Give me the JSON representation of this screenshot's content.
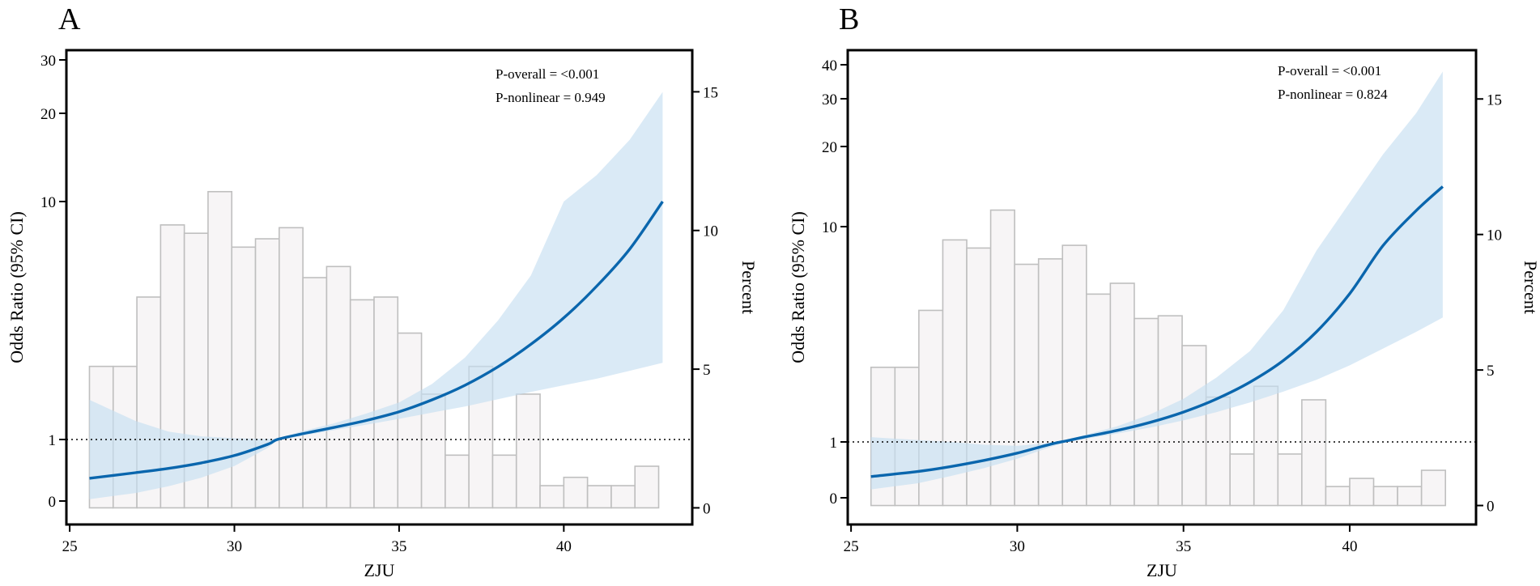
{
  "chart_data": [
    {
      "panel": "A",
      "type": "bar+line",
      "xlabel": "ZJU",
      "ylabel": "Odds Ratio (95% CI)",
      "y2label": "Percent",
      "xticks": [
        25,
        30,
        35,
        40
      ],
      "xlim": [
        24.9,
        43.9
      ],
      "yticks": [
        0,
        1,
        10,
        20,
        30
      ],
      "y2ticks": [
        0,
        5,
        10,
        15
      ],
      "y2lim": [
        -0.6,
        16.5
      ],
      "annotations": [
        "P-overall = <0.001",
        "P-nonlinear = 0.949"
      ],
      "reference_line": 1,
      "histogram": {
        "bin_width": 0.72,
        "bin_start": 25.6,
        "percent": [
          5.1,
          5.1,
          7.6,
          10.2,
          9.9,
          11.4,
          9.4,
          9.7,
          10.1,
          8.3,
          8.7,
          7.5,
          7.6,
          6.3,
          4.1,
          1.9,
          5.1,
          1.9,
          4.1,
          0.8,
          1.1,
          0.8,
          0.8,
          1.5
        ]
      },
      "spline": {
        "x": [
          25.6,
          27,
          28,
          29,
          30,
          31,
          31.3,
          32,
          33,
          34,
          35,
          36,
          37,
          38,
          39,
          40,
          41,
          42,
          43
        ],
        "or": [
          0.37,
          0.46,
          0.53,
          0.62,
          0.74,
          0.92,
          1.0,
          1.2,
          1.45,
          1.72,
          2.05,
          2.5,
          3.05,
          3.75,
          4.6,
          5.6,
          6.8,
          8.2,
          10.0
        ],
        "lower": [
          0.03,
          0.13,
          0.24,
          0.38,
          0.57,
          0.86,
          0.98,
          1.13,
          1.35,
          1.56,
          1.78,
          2.02,
          2.25,
          2.52,
          2.8,
          3.05,
          3.3,
          3.6,
          3.9
        ],
        "upper": [
          2.5,
          1.7,
          1.3,
          1.12,
          1.05,
          1.02,
          1.02,
          1.3,
          1.6,
          1.98,
          2.4,
          3.1,
          4.1,
          5.5,
          7.2,
          10.0,
          13.0,
          17.0,
          24.0
        ]
      }
    },
    {
      "panel": "B",
      "type": "bar+line",
      "xlabel": "ZJU",
      "ylabel": "Odds Ratio (95% CI)",
      "y2label": "Percent",
      "xticks": [
        25,
        30,
        35,
        40
      ],
      "xlim": [
        24.9,
        43.8
      ],
      "yticks": [
        0,
        1,
        10,
        20,
        30,
        40
      ],
      "y2ticks": [
        0,
        5,
        10,
        15
      ],
      "y2lim": [
        -0.7,
        16.8
      ],
      "annotations": [
        "P-overall = <0.001",
        "P-nonlinear = 0.824"
      ],
      "reference_line": 1,
      "histogram": {
        "bin_width": 0.72,
        "bin_start": 25.6,
        "percent": [
          5.1,
          5.1,
          7.2,
          9.8,
          9.5,
          10.9,
          8.9,
          9.1,
          9.6,
          7.8,
          8.2,
          6.9,
          7.0,
          5.9,
          4.0,
          1.9,
          4.4,
          1.9,
          3.9,
          0.7,
          1.0,
          0.7,
          0.7,
          1.3
        ]
      },
      "spline": {
        "x": [
          25.6,
          27,
          28,
          29,
          30,
          31,
          31.5,
          32,
          33,
          34,
          35,
          36,
          37,
          38,
          39,
          40,
          41,
          42,
          42.8
        ],
        "or": [
          0.38,
          0.47,
          0.56,
          0.67,
          0.8,
          0.96,
          1.05,
          1.2,
          1.48,
          1.82,
          2.25,
          2.8,
          3.5,
          4.4,
          5.6,
          7.2,
          9.2,
          12.0,
          15.0
        ],
        "lower": [
          0.15,
          0.26,
          0.39,
          0.53,
          0.7,
          0.91,
          1.0,
          1.12,
          1.35,
          1.6,
          1.9,
          2.25,
          2.65,
          3.1,
          3.6,
          4.2,
          4.9,
          5.6,
          6.2
        ],
        "upper": [
          1.2,
          1.08,
          1.0,
          0.95,
          0.93,
          0.98,
          1.08,
          1.28,
          1.65,
          2.15,
          2.8,
          3.7,
          4.8,
          6.5,
          9.0,
          13.0,
          19.0,
          27.0,
          38.0
        ]
      }
    }
  ],
  "colors": {
    "line": "#0a66ad",
    "band": "#c6dff1",
    "bar_fill": "#f7f5f6",
    "bar_edge": "#bfbfbf",
    "frame": "#000000"
  }
}
